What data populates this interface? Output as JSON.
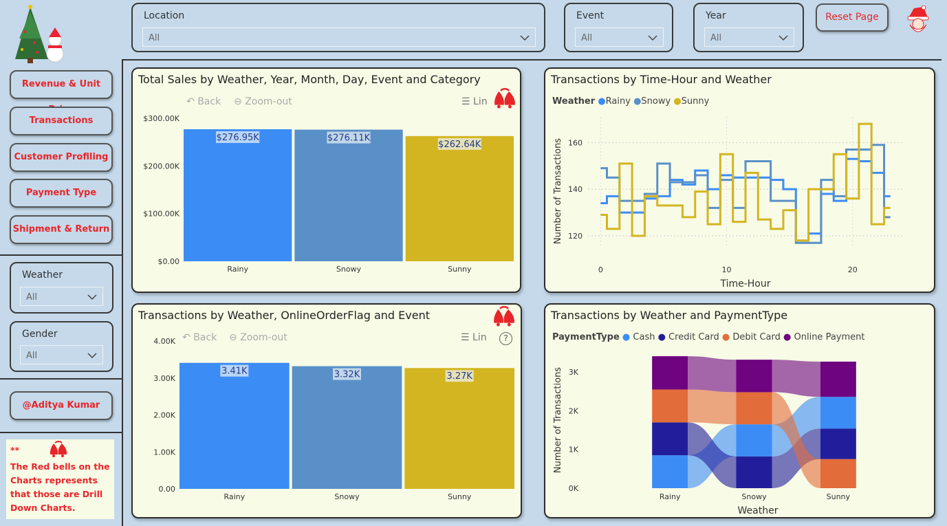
{
  "filters": {
    "location": {
      "label": "Location",
      "value": "All"
    },
    "event": {
      "label": "Event",
      "value": "All"
    },
    "year": {
      "label": "Year",
      "value": "All"
    },
    "weather": {
      "label": "Weather",
      "value": "All"
    },
    "gender": {
      "label": "Gender",
      "value": "All"
    }
  },
  "reset_label": "Reset Page",
  "nav": {
    "revenue": "Revenue & Unit Price",
    "transactions": "Transactions",
    "customer": "Customer Profiling",
    "payment": "Payment Type",
    "shipment": "Shipment & Return",
    "author": "@Aditya Kumar"
  },
  "note": {
    "stars": "**",
    "text": "The Red bells on the Charts represents that those are Drill Down Charts."
  },
  "toolbar": {
    "back": "Back",
    "zoom": "Zoom-out",
    "lin": "Lin"
  },
  "colors": {
    "rainy": "#3c8cf6",
    "snowy": "#5990c8",
    "sunny": "#d3b521",
    "cash": "#3c8cf6",
    "credit": "#221e9b",
    "debit": "#e26c3a",
    "online": "#6e0480"
  },
  "chart_data": [
    {
      "type": "bar",
      "title": "Total Sales by Weather, Year, Month, Day, Event and Category",
      "categories": [
        "Rainy",
        "Snowy",
        "Sunny"
      ],
      "values": [
        276950,
        276110,
        262640
      ],
      "data_labels": [
        "$276.95K",
        "$276.11K",
        "$262.64K"
      ],
      "yticks": [
        "$0.00",
        "$100.00K",
        "$200.00K",
        "$300.00K"
      ],
      "ylim": [
        0,
        300000
      ]
    },
    {
      "type": "line",
      "title": "Transactions by Time-Hour and Weather",
      "legend_title": "Weather",
      "xlabel": "Time-Hour",
      "ylabel": "Number of Transactions",
      "xticks": [
        "0",
        "10",
        "20"
      ],
      "yticks": [
        "120",
        "140",
        "160"
      ],
      "xlim": [
        -1,
        24
      ],
      "ylim": [
        115,
        171
      ],
      "x": [
        0,
        1,
        2,
        3,
        4,
        5,
        6,
        7,
        8,
        9,
        10,
        11,
        12,
        13,
        14,
        15,
        16,
        17,
        18,
        19,
        20,
        21,
        22,
        23
      ],
      "series": [
        {
          "name": "Rainy",
          "values": [
            134,
            137,
            130,
            130,
            136,
            137,
            144,
            142,
            148,
            140,
            146,
            145,
            145,
            145,
            144,
            140,
            118,
            121,
            138,
            135,
            153,
            152,
            147,
            137
          ]
        },
        {
          "name": "Snowy",
          "values": [
            149,
            145,
            135,
            135,
            138,
            151,
            143,
            143,
            146,
            132,
            144,
            132,
            152,
            152,
            135,
            135,
            117,
            117,
            144,
            137,
            157,
            157,
            159,
            128
          ]
        },
        {
          "name": "Sunny",
          "values": [
            129,
            123,
            151,
            120,
            137,
            133,
            133,
            128,
            139,
            125,
            155,
            126,
            147,
            127,
            123,
            131,
            118,
            140,
            140,
            155,
            136,
            168,
            125,
            132
          ]
        }
      ]
    },
    {
      "type": "bar",
      "title": "Transactions by Weather, OnlineOrderFlag and Event",
      "categories": [
        "Rainy",
        "Snowy",
        "Sunny"
      ],
      "values": [
        3410,
        3320,
        3270
      ],
      "data_labels": [
        "3.41K",
        "3.32K",
        "3.27K"
      ],
      "yticks": [
        "0.00",
        "1.00K",
        "2.00K",
        "3.00K",
        "4.00K"
      ],
      "ylim": [
        0,
        4000
      ]
    },
    {
      "type": "area",
      "title": "Transactions by Weather and PaymentType",
      "legend_title": "PaymentType",
      "xlabel": "Weather",
      "ylabel": "Number of Transactions",
      "categories": [
        "Rainy",
        "Snowy",
        "Sunny"
      ],
      "yticks": [
        "0K",
        "1K",
        "2K",
        "3K"
      ],
      "ylim": [
        0,
        3500
      ],
      "series": [
        {
          "name": "Cash",
          "values": [
            850,
            830,
            820
          ]
        },
        {
          "name": "Credit Card",
          "values": [
            850,
            820,
            790
          ]
        },
        {
          "name": "Debit Card",
          "values": [
            850,
            830,
            750
          ]
        },
        {
          "name": "Online Payment",
          "values": [
            860,
            840,
            910
          ]
        }
      ]
    }
  ]
}
